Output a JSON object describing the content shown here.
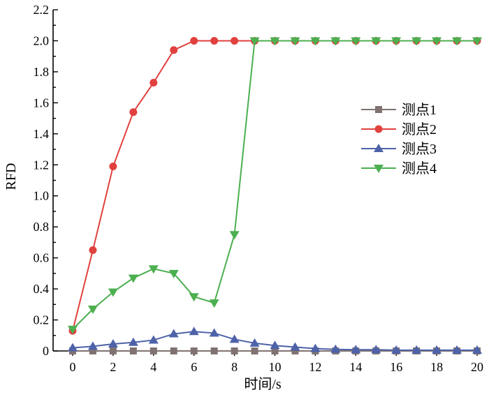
{
  "chart_data": {
    "type": "line",
    "xlabel": "时间/s",
    "ylabel": "RFD",
    "xlim": [
      -1,
      20
    ],
    "ylim": [
      0,
      2.2
    ],
    "x_ticks": [
      "0",
      "2",
      "4",
      "6",
      "8",
      "10",
      "12",
      "14",
      "16",
      "18",
      "20"
    ],
    "y_ticks": [
      "0",
      "0.2",
      "0.4",
      "0.6",
      "0.8",
      "1.0",
      "1.2",
      "1.4",
      "1.6",
      "1.8",
      "2.0",
      "2.2"
    ],
    "x": [
      0,
      1,
      2,
      3,
      4,
      5,
      6,
      7,
      8,
      9,
      10,
      11,
      12,
      13,
      14,
      15,
      16,
      17,
      18,
      19,
      20
    ],
    "legend_position": "center-right",
    "series": [
      {
        "name": "测点1",
        "color": "#7f7270",
        "marker": "square",
        "values": [
          0,
          0,
          0,
          0,
          0,
          0,
          0,
          0,
          0,
          0,
          0,
          0,
          0,
          0,
          0,
          0,
          0,
          0,
          0,
          0,
          0
        ]
      },
      {
        "name": "测点2",
        "color": "#e0413e",
        "marker": "circle",
        "values": [
          0.13,
          0.65,
          1.19,
          1.54,
          1.73,
          1.94,
          2.0,
          2.0,
          2.0,
          2.0,
          2.0,
          2.0,
          2.0,
          2.0,
          2.0,
          2.0,
          2.0,
          2.0,
          2.0,
          2.0,
          2.0
        ]
      },
      {
        "name": "测点3",
        "color": "#4d62a8",
        "marker": "triangle-up",
        "values": [
          0.02,
          0.03,
          0.045,
          0.055,
          0.07,
          0.11,
          0.125,
          0.115,
          0.075,
          0.05,
          0.035,
          0.025,
          0.015,
          0.01,
          0.008,
          0.008,
          0.005,
          0.005,
          0.005,
          0.005,
          0.005
        ]
      },
      {
        "name": "测点4",
        "color": "#4caf50",
        "marker": "triangle-down",
        "values": [
          0.14,
          0.27,
          0.38,
          0.47,
          0.53,
          0.5,
          0.35,
          0.31,
          0.75,
          2.0,
          2.0,
          2.0,
          2.0,
          2.0,
          2.0,
          2.0,
          2.0,
          2.0,
          2.0,
          2.0,
          2.0
        ]
      }
    ]
  }
}
